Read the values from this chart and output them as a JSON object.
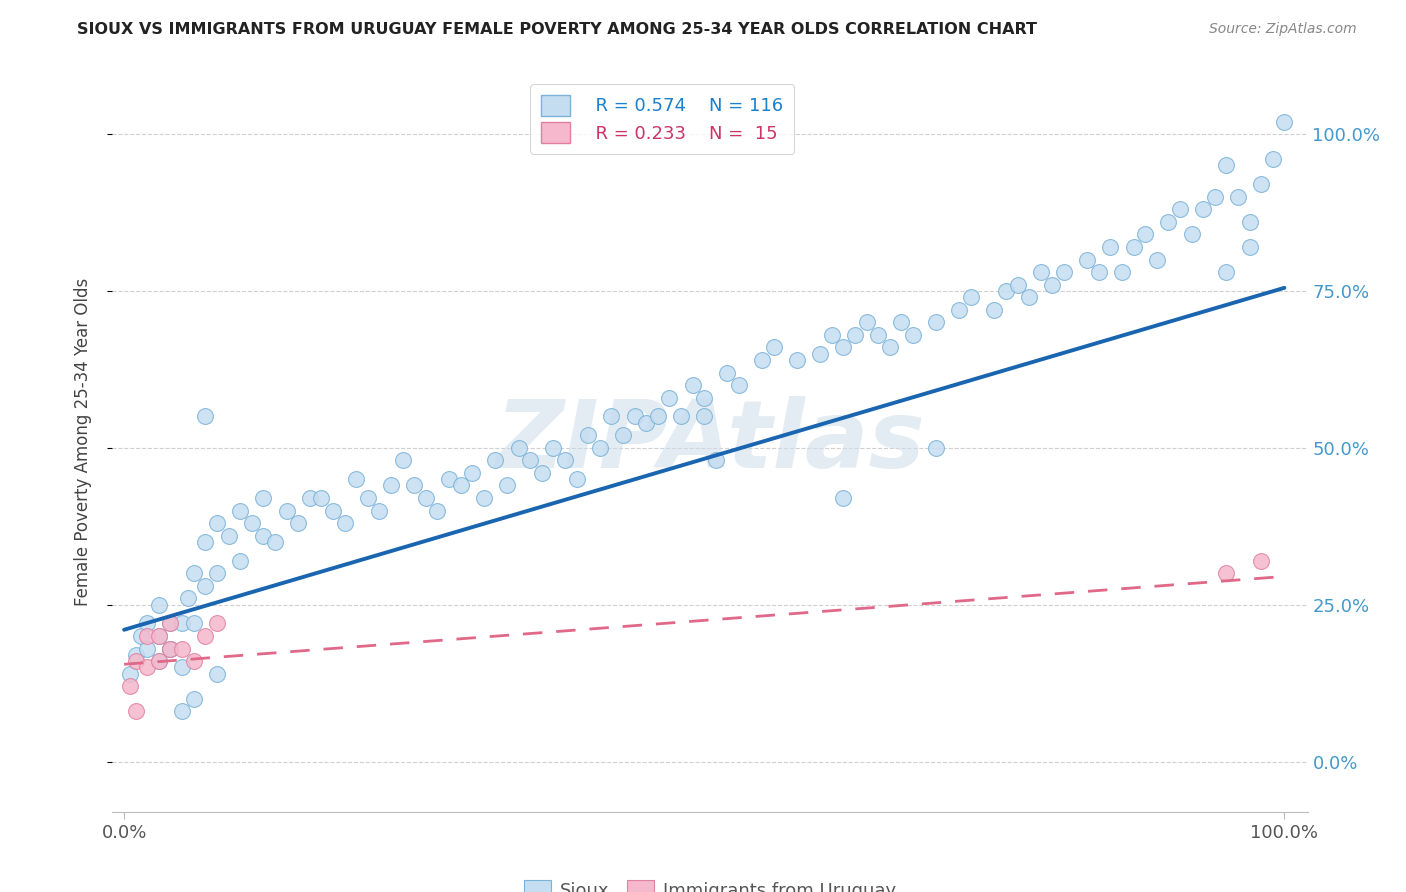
{
  "title": "SIOUX VS IMMIGRANTS FROM URUGUAY FEMALE POVERTY AMONG 25-34 YEAR OLDS CORRELATION CHART",
  "source": "Source: ZipAtlas.com",
  "ylabel": "Female Poverty Among 25-34 Year Olds",
  "xlim": [
    -0.01,
    1.02
  ],
  "ylim": [
    -0.08,
    1.1
  ],
  "yticks": [
    0.0,
    0.25,
    0.5,
    0.75,
    1.0
  ],
  "ytick_labels_right": [
    "0.0%",
    "25.0%",
    "50.0%",
    "75.0%",
    "100.0%"
  ],
  "xticks": [
    0.0,
    1.0
  ],
  "xtick_labels": [
    "0.0%",
    "100.0%"
  ],
  "legend_r1": "R = 0.574",
  "legend_n1": "N = 116",
  "legend_r2": "R = 0.233",
  "legend_n2": "N =  15",
  "label1": "Sioux",
  "label2": "Immigrants from Uruguay",
  "color1": "#c5ddf0",
  "color2": "#f5b8cc",
  "edge_color1": "#7ab2d8",
  "edge_color2": "#e080a0",
  "line_color1": "#1a65b0",
  "line_color2": "#e06888",
  "bg_color": "#ffffff",
  "grid_color": "#d0d0d0",
  "watermark": "ZIPAtlas",
  "watermark_color": "#ccdde8",
  "title_color": "#222222",
  "source_color": "#888888",
  "tick_color_right": "#4499cc",
  "legend_color1": "#1a80cc",
  "legend_color2": "#cc3366",
  "trend_sioux_x0": 0.0,
  "trend_sioux_y0": 0.21,
  "trend_sioux_x1": 1.0,
  "trend_sioux_y1": 0.755,
  "trend_uruguay_x0": 0.0,
  "trend_uruguay_y0": 0.155,
  "trend_uruguay_x1": 1.0,
  "trend_uruguay_y1": 0.295,
  "sioux_x": [
    0.005,
    0.01,
    0.015,
    0.02,
    0.02,
    0.03,
    0.03,
    0.04,
    0.04,
    0.05,
    0.05,
    0.055,
    0.06,
    0.06,
    0.07,
    0.07,
    0.08,
    0.08,
    0.09,
    0.1,
    0.1,
    0.11,
    0.12,
    0.12,
    0.13,
    0.14,
    0.15,
    0.16,
    0.17,
    0.18,
    0.19,
    0.2,
    0.21,
    0.22,
    0.23,
    0.24,
    0.25,
    0.26,
    0.27,
    0.28,
    0.29,
    0.3,
    0.31,
    0.32,
    0.33,
    0.34,
    0.35,
    0.36,
    0.37,
    0.38,
    0.39,
    0.4,
    0.41,
    0.42,
    0.43,
    0.44,
    0.45,
    0.46,
    0.47,
    0.48,
    0.49,
    0.5,
    0.52,
    0.53,
    0.55,
    0.56,
    0.58,
    0.6,
    0.61,
    0.62,
    0.63,
    0.64,
    0.65,
    0.66,
    0.67,
    0.68,
    0.7,
    0.72,
    0.73,
    0.75,
    0.76,
    0.77,
    0.78,
    0.79,
    0.8,
    0.81,
    0.83,
    0.84,
    0.85,
    0.86,
    0.87,
    0.88,
    0.89,
    0.9,
    0.91,
    0.92,
    0.93,
    0.94,
    0.95,
    0.96,
    0.97,
    0.98,
    0.99,
    1.0,
    0.95,
    0.97,
    0.03,
    0.04,
    0.05,
    0.06,
    0.07,
    0.08,
    0.5,
    0.51,
    0.62,
    0.7
  ],
  "sioux_y": [
    0.14,
    0.17,
    0.2,
    0.22,
    0.18,
    0.25,
    0.2,
    0.22,
    0.18,
    0.15,
    0.22,
    0.26,
    0.3,
    0.22,
    0.35,
    0.28,
    0.3,
    0.38,
    0.36,
    0.4,
    0.32,
    0.38,
    0.42,
    0.36,
    0.35,
    0.4,
    0.38,
    0.42,
    0.42,
    0.4,
    0.38,
    0.45,
    0.42,
    0.4,
    0.44,
    0.48,
    0.44,
    0.42,
    0.4,
    0.45,
    0.44,
    0.46,
    0.42,
    0.48,
    0.44,
    0.5,
    0.48,
    0.46,
    0.5,
    0.48,
    0.45,
    0.52,
    0.5,
    0.55,
    0.52,
    0.55,
    0.54,
    0.55,
    0.58,
    0.55,
    0.6,
    0.58,
    0.62,
    0.6,
    0.64,
    0.66,
    0.64,
    0.65,
    0.68,
    0.66,
    0.68,
    0.7,
    0.68,
    0.66,
    0.7,
    0.68,
    0.7,
    0.72,
    0.74,
    0.72,
    0.75,
    0.76,
    0.74,
    0.78,
    0.76,
    0.78,
    0.8,
    0.78,
    0.82,
    0.78,
    0.82,
    0.84,
    0.8,
    0.86,
    0.88,
    0.84,
    0.88,
    0.9,
    0.95,
    0.9,
    0.86,
    0.92,
    0.96,
    1.02,
    0.78,
    0.82,
    0.16,
    0.18,
    0.08,
    0.1,
    0.55,
    0.14,
    0.55,
    0.48,
    0.42,
    0.5
  ],
  "uruguay_x": [
    0.005,
    0.01,
    0.01,
    0.02,
    0.02,
    0.03,
    0.03,
    0.04,
    0.04,
    0.05,
    0.06,
    0.07,
    0.08,
    0.95,
    0.98
  ],
  "uruguay_y": [
    0.12,
    0.08,
    0.16,
    0.15,
    0.2,
    0.16,
    0.2,
    0.18,
    0.22,
    0.18,
    0.16,
    0.2,
    0.22,
    0.3,
    0.32
  ]
}
